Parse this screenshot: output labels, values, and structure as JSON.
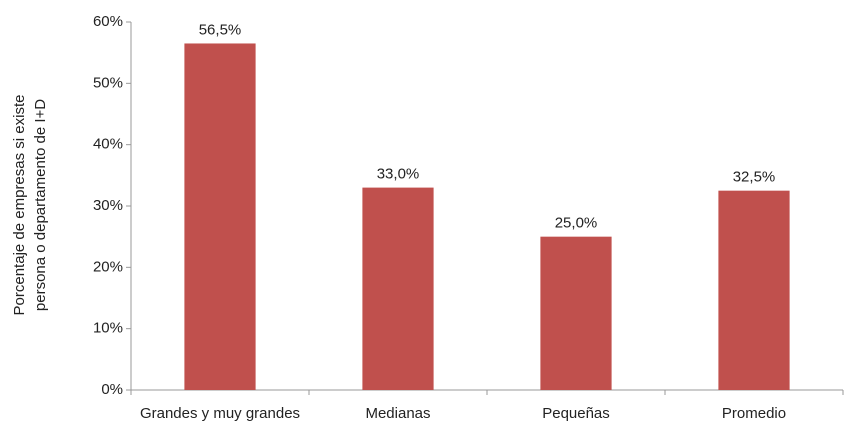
{
  "chart_data": {
    "type": "bar",
    "ylabel": [
      "Porcentaje de empresas si existe",
      "persona o departamento de I+D"
    ],
    "categories": [
      "Grandes y muy grandes",
      "Medianas",
      "Pequeñas",
      "Promedio"
    ],
    "values": [
      56.5,
      33.0,
      25.0,
      32.5
    ],
    "value_labels": [
      "56,5%",
      "33,0%",
      "25,0%",
      "32,5%"
    ],
    "color": "#c0504d",
    "ylim": [
      0,
      60
    ],
    "yticks": [
      {
        "value": 0,
        "label": "0%"
      },
      {
        "value": 10,
        "label": "10%"
      },
      {
        "value": 20,
        "label": "20%"
      },
      {
        "value": 30,
        "label": "30%"
      },
      {
        "value": 40,
        "label": "40%"
      },
      {
        "value": 50,
        "label": "50%"
      },
      {
        "value": 60,
        "label": "60%"
      }
    ],
    "grid": false
  }
}
